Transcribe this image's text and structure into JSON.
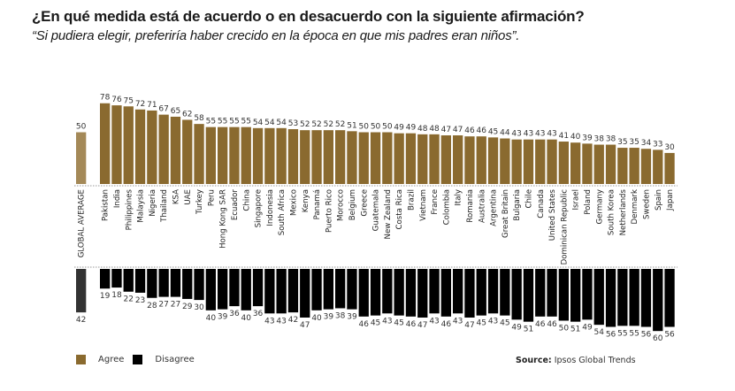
{
  "title": "¿En qué medida está de acuerdo o en desacuerdo con la siguiente afirmación?",
  "subtitle": "“Si pudiera elegir, preferiría haber crecido en la época en que mis padres eran niños”.",
  "colors": {
    "agree": "#8a6a2f",
    "agree_global": "#a48958",
    "disagree": "#000000",
    "disagree_global": "#333333"
  },
  "legend": [
    {
      "label": "Agree",
      "color": "#8a6a2f"
    },
    {
      "label": "Disagree",
      "color": "#000000"
    }
  ],
  "source": {
    "prefix": "Source:",
    "text": " Ipsos Global Trends"
  },
  "chart_data": {
    "type": "bar",
    "title": "¿En qué medida está de acuerdo o en desacuerdo con la siguiente afirmación?",
    "subtitle": "“Si pudiera elegir, preferiría haber crecido en la época en que mis padres eran niños”.",
    "xlabel": "",
    "ylabel": "",
    "legend_position": "bottom-left",
    "grid": false,
    "global_average": {
      "label": "GLOBAL AVERAGE",
      "agree": 50,
      "disagree": 42
    },
    "categories": [
      "Pakistan",
      "India",
      "Philippines",
      "Malaysia",
      "Nigeria",
      "Thailand",
      "KSA",
      "UAE",
      "Turkey",
      "Peru",
      "Hong Kong SAR",
      "Ecuador",
      "China",
      "Singapore",
      "Indonesia",
      "South Africa",
      "Mexico",
      "Kenya",
      "Panamá",
      "Puerto Rico",
      "Morocco",
      "Belgium",
      "Greece",
      "Guatemala",
      "New Zealand",
      "Costa Rica",
      "Brazil",
      "Vietnam",
      "France",
      "Colombia",
      "Italy",
      "Romania",
      "Australia",
      "Argentina",
      "Great Britain",
      "Bulgaria",
      "Chile",
      "Canada",
      "United States",
      "Dominican Republic",
      "Israel",
      "Poland",
      "Germany",
      "South Korea",
      "Netherlands",
      "Denmark",
      "Sweden",
      "Spain",
      "Japan"
    ],
    "series": [
      {
        "name": "Agree",
        "values": [
          78,
          76,
          75,
          72,
          71,
          67,
          65,
          62,
          58,
          55,
          55,
          55,
          55,
          54,
          54,
          54,
          53,
          52,
          52,
          52,
          52,
          51,
          50,
          50,
          50,
          49,
          49,
          48,
          48,
          47,
          47,
          46,
          46,
          45,
          44,
          43,
          43,
          43,
          43,
          41,
          40,
          39,
          38,
          38,
          35,
          35,
          34,
          33,
          30
        ]
      },
      {
        "name": "Disagree",
        "values": [
          19,
          18,
          22,
          23,
          28,
          27,
          27,
          29,
          30,
          40,
          39,
          36,
          40,
          36,
          43,
          43,
          42,
          47,
          40,
          39,
          38,
          39,
          46,
          45,
          43,
          45,
          46,
          47,
          43,
          46,
          43,
          47,
          45,
          43,
          45,
          49,
          51,
          46,
          46,
          50,
          51,
          49,
          54,
          56,
          55,
          55,
          56,
          60,
          56
        ]
      }
    ],
    "ylim": [
      0,
      80
    ]
  }
}
